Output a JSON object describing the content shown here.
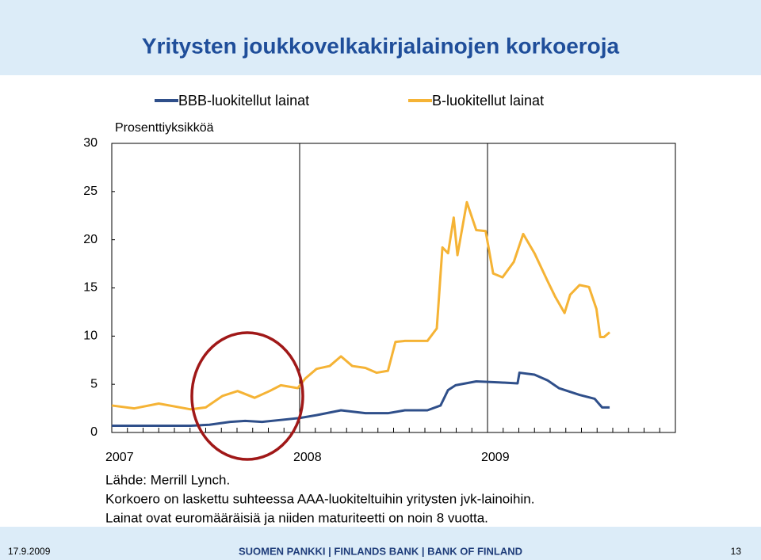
{
  "chart_data": {
    "type": "line",
    "title": "Yritysten joukkovelkakirjalainojen korkoeroja",
    "y_label": "Prosenttiyksikköä",
    "xlim": [
      2007,
      2010
    ],
    "xticks": [
      2007,
      2008,
      2009
    ],
    "ylim": [
      0,
      30
    ],
    "yticks": [
      0,
      5,
      10,
      15,
      20,
      25,
      30
    ],
    "grid": true,
    "legend": "top",
    "series": [
      {
        "name": "BBB-luokitellut lainat",
        "color": "#2f4f8a",
        "x": [
          2007.0,
          2007.25,
          2007.42,
          2007.52,
          2007.63,
          2007.71,
          2007.8,
          2007.9,
          2008.0,
          2008.09,
          2008.22,
          2008.35,
          2008.47,
          2008.56,
          2008.68,
          2008.75,
          2008.79,
          2008.83,
          2008.94,
          2009.06,
          2009.16,
          2009.17,
          2009.25,
          2009.32,
          2009.38,
          2009.49,
          2009.57,
          2009.61,
          2009.65
        ],
        "values": [
          0.7,
          0.7,
          0.7,
          0.8,
          1.1,
          1.2,
          1.1,
          1.3,
          1.5,
          1.8,
          2.3,
          2.0,
          2.0,
          2.3,
          2.3,
          2.8,
          4.4,
          4.9,
          5.3,
          5.2,
          5.1,
          6.2,
          6.0,
          5.4,
          4.6,
          3.9,
          3.5,
          2.6,
          2.6
        ]
      },
      {
        "name": "B-luokitellut lainat",
        "color": "#f5b335",
        "x": [
          2007.0,
          2007.12,
          2007.25,
          2007.42,
          2007.5,
          2007.59,
          2007.67,
          2007.76,
          2007.84,
          2007.9,
          2007.99,
          2008.03,
          2008.09,
          2008.16,
          2008.22,
          2008.28,
          2008.35,
          2008.41,
          2008.47,
          2008.51,
          2008.56,
          2008.62,
          2008.68,
          2008.73,
          2008.76,
          2008.79,
          2008.82,
          2008.84,
          2008.89,
          2008.94,
          2008.99,
          2009.03,
          2009.08,
          2009.14,
          2009.19,
          2009.25,
          2009.32,
          2009.36,
          2009.41,
          2009.44,
          2009.49,
          2009.54,
          2009.58,
          2009.6,
          2009.62,
          2009.65
        ],
        "values": [
          2.8,
          2.5,
          3.0,
          2.4,
          2.6,
          3.8,
          4.3,
          3.6,
          4.3,
          4.9,
          4.6,
          5.6,
          6.6,
          6.9,
          7.9,
          6.9,
          6.7,
          6.2,
          6.4,
          9.4,
          9.5,
          9.5,
          9.5,
          10.8,
          19.2,
          18.6,
          22.3,
          18.4,
          23.9,
          21.0,
          20.9,
          16.5,
          16.1,
          17.7,
          20.6,
          18.6,
          15.7,
          14.1,
          12.4,
          14.3,
          15.3,
          15.1,
          12.8,
          9.9,
          9.9,
          10.4
        ]
      }
    ],
    "notes": [
      "Lähde: Merrill Lynch.",
      "Korkoero on laskettu suhteessa AAA-luokiteltuihin yritysten jvk-lainoihin.",
      "Lainat ovat euromääräisiä ja niiden maturiteetti on noin 8 vuotta."
    ]
  },
  "footer": {
    "date": "17.9.2009",
    "organization": "SUOMEN PANKKI | FINLANDS BANK | BANK OF FINLAND",
    "page": "13"
  }
}
